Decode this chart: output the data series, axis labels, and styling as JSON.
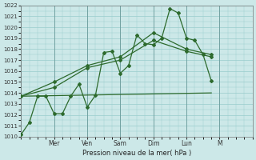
{
  "bg_color": "#cce8e8",
  "grid_color": "#99cccc",
  "line_color": "#2d6a2d",
  "xlabel": "Pression niveau de la mer( hPa )",
  "ylim": [
    1010,
    1022
  ],
  "yticks": [
    1010,
    1011,
    1012,
    1013,
    1014,
    1015,
    1016,
    1017,
    1018,
    1019,
    1020,
    1021,
    1022
  ],
  "xlim": [
    0,
    14
  ],
  "day_tick_pos": [
    0,
    2,
    4,
    6,
    8,
    10,
    12,
    14
  ],
  "day_tick_labels": [
    "",
    "Mer",
    "Ven",
    "Sam",
    "Dim",
    "Lun",
    "M",
    ""
  ],
  "series1_x": [
    0.0,
    0.5,
    1.0,
    1.5,
    2.0,
    2.5,
    3.0,
    3.5,
    4.0,
    4.5,
    5.0,
    5.5,
    6.0,
    6.5,
    7.0,
    7.5,
    8.0,
    8.5,
    9.0,
    9.5,
    10.0,
    10.5,
    11.0,
    11.5
  ],
  "series1_y": [
    1010.2,
    1011.3,
    1013.7,
    1013.7,
    1012.1,
    1012.1,
    1013.7,
    1014.8,
    1012.7,
    1013.8,
    1017.7,
    1017.8,
    1015.8,
    1016.5,
    1019.3,
    1018.5,
    1018.4,
    1019.0,
    1021.7,
    1021.3,
    1019.0,
    1018.8,
    1017.5,
    1015.1
  ],
  "series2_x": [
    0.0,
    11.5
  ],
  "series2_y": [
    1013.7,
    1014.0
  ],
  "series3_x": [
    0.0,
    2.0,
    4.0,
    6.0,
    8.0,
    10.0,
    11.5
  ],
  "series3_y": [
    1013.7,
    1014.5,
    1016.3,
    1017.0,
    1018.8,
    1017.8,
    1017.3
  ],
  "series4_x": [
    0.0,
    2.0,
    4.0,
    6.0,
    8.0,
    10.0,
    11.5
  ],
  "series4_y": [
    1013.7,
    1015.0,
    1016.5,
    1017.3,
    1019.5,
    1018.0,
    1017.5
  ]
}
